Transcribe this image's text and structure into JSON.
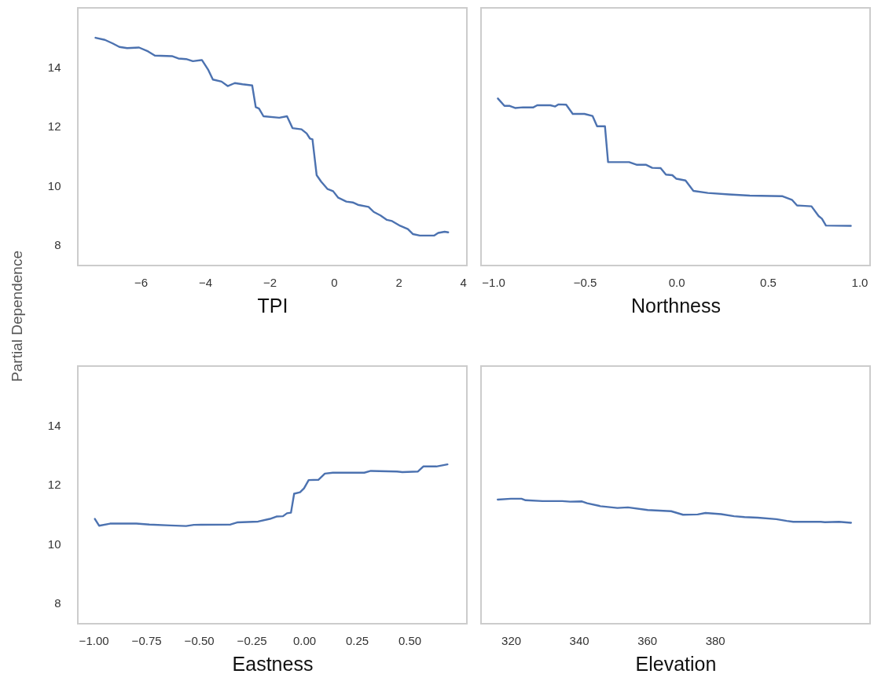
{
  "chart_data": [
    {
      "type": "line",
      "xlabel": "TPI",
      "ylabel": "Partial Dependence",
      "xlim": [
        -7.95,
        4.12
      ],
      "ylim": [
        7.3,
        16
      ],
      "xticks": [
        {
          "value": -6,
          "label": "−6"
        },
        {
          "value": -4,
          "label": "−4"
        },
        {
          "value": -2,
          "label": "−2"
        },
        0,
        2,
        4
      ],
      "yticks": [
        8,
        10,
        12,
        14
      ],
      "grid": false,
      "x": [
        -7.4,
        -7.11,
        -6.87,
        -6.66,
        -6.42,
        -6.05,
        -5.77,
        -5.56,
        -5.03,
        -4.83,
        -4.59,
        -4.38,
        -4.1,
        -3.9,
        -3.76,
        -3.49,
        -3.3,
        -3.08,
        -2.84,
        -2.54,
        -2.43,
        -2.33,
        -2.19,
        -1.7,
        -1.46,
        -1.29,
        -1.01,
        -0.85,
        -0.75,
        -0.67,
        -0.54,
        -0.4,
        -0.2,
        -0.03,
        0.13,
        0.38,
        0.58,
        0.74,
        1.07,
        1.23,
        1.44,
        1.64,
        1.8,
        2.05,
        2.29,
        2.45,
        2.66,
        3.1,
        3.23,
        3.43,
        3.54
      ],
      "series": [
        {
          "color": "#4c72b0",
          "values": [
            14.99,
            14.92,
            14.8,
            14.68,
            14.64,
            14.66,
            14.53,
            14.39,
            14.37,
            14.29,
            14.27,
            14.2,
            14.24,
            13.9,
            13.58,
            13.51,
            13.36,
            13.46,
            13.42,
            13.38,
            12.65,
            12.6,
            12.34,
            12.29,
            12.34,
            11.94,
            11.9,
            11.76,
            11.59,
            11.56,
            10.35,
            10.13,
            9.88,
            9.81,
            9.59,
            9.46,
            9.43,
            9.35,
            9.28,
            9.11,
            8.99,
            8.84,
            8.8,
            8.64,
            8.53,
            8.36,
            8.31,
            8.31,
            8.4,
            8.44,
            8.42
          ]
        }
      ]
    },
    {
      "type": "line",
      "xlabel": "Northness",
      "xlim": [
        -1.067,
        1.058
      ],
      "ylim": [
        7.3,
        16
      ],
      "xticks": [
        {
          "value": -1,
          "label": "−1.0"
        },
        {
          "value": -0.5,
          "label": "−0.5"
        },
        {
          "value": 0,
          "label": "0.0"
        },
        0.5,
        {
          "value": 1,
          "label": "1.0"
        }
      ],
      "yticks": [
        8,
        10,
        12,
        14
      ],
      "grid": false,
      "tick_labels": "x",
      "x": [
        -0.975,
        -0.939,
        -0.91,
        -0.881,
        -0.838,
        -0.781,
        -0.76,
        -0.688,
        -0.662,
        -0.645,
        -0.602,
        -0.566,
        -0.502,
        -0.458,
        -0.433,
        -0.39,
        -0.373,
        -0.258,
        -0.215,
        -0.165,
        -0.132,
        -0.086,
        -0.057,
        -0.022,
        0.0,
        0.05,
        0.093,
        0.172,
        0.287,
        0.401,
        0.58,
        0.631,
        0.659,
        0.738,
        0.777,
        0.795,
        0.817,
        0.953
      ],
      "series": [
        {
          "color": "#4c72b0",
          "values": [
            12.94,
            12.69,
            12.69,
            12.62,
            12.64,
            12.64,
            12.71,
            12.71,
            12.67,
            12.74,
            12.73,
            12.42,
            12.42,
            12.35,
            12.0,
            12.0,
            10.79,
            10.79,
            10.7,
            10.7,
            10.6,
            10.59,
            10.37,
            10.35,
            10.23,
            10.17,
            9.82,
            9.75,
            9.7,
            9.66,
            9.64,
            9.52,
            9.33,
            9.3,
            8.97,
            8.88,
            8.65,
            8.64
          ]
        }
      ]
    },
    {
      "type": "line",
      "xlabel": "Eastness",
      "xlim": [
        -1.075,
        0.772
      ],
      "ylim": [
        7.3,
        16
      ],
      "xticks": [
        {
          "value": -1,
          "label": "−1.00"
        },
        {
          "value": -0.75,
          "label": "−0.75"
        },
        {
          "value": -0.5,
          "label": "−0.50"
        },
        {
          "value": -0.25,
          "label": "−0.25"
        },
        {
          "value": 0,
          "label": "0.00"
        },
        {
          "value": 0.25,
          "label": "0.25"
        },
        {
          "value": 0.5,
          "label": "0.50"
        }
      ],
      "yticks": [
        8,
        10,
        12,
        14
      ],
      "grid": false,
      "x": [
        -0.994,
        -0.974,
        -0.922,
        -0.797,
        -0.735,
        -0.636,
        -0.561,
        -0.524,
        -0.35,
        -0.319,
        -0.219,
        -0.163,
        -0.132,
        -0.101,
        -0.082,
        -0.063,
        -0.048,
        -0.02,
        -0.001,
        0.021,
        0.067,
        0.098,
        0.136,
        0.285,
        0.316,
        0.44,
        0.465,
        0.54,
        0.565,
        0.627,
        0.68
      ],
      "series": [
        {
          "color": "#4c72b0",
          "values": [
            10.84,
            10.61,
            10.68,
            10.68,
            10.65,
            10.62,
            10.6,
            10.64,
            10.65,
            10.72,
            10.75,
            10.84,
            10.92,
            10.93,
            11.03,
            11.05,
            11.69,
            11.74,
            11.87,
            12.15,
            12.16,
            12.37,
            12.4,
            12.4,
            12.46,
            12.44,
            12.42,
            12.44,
            12.61,
            12.61,
            12.68
          ]
        }
      ]
    },
    {
      "type": "line",
      "xlabel": "Elevation",
      "xlim": [
        311.2,
        425.6
      ],
      "ylim": [
        7.3,
        16
      ],
      "xticks": [
        320,
        340,
        360,
        380
      ],
      "yticks": [
        8,
        10,
        12,
        14
      ],
      "grid": false,
      "tick_labels": "x",
      "x": [
        316.1,
        320.0,
        323.1,
        324.3,
        329.3,
        335.1,
        337.4,
        340.9,
        342.4,
        346.3,
        351.3,
        354.4,
        360.2,
        367.1,
        370.6,
        374.9,
        377.2,
        381.8,
        385.6,
        388.7,
        392.6,
        398.0,
        401.1,
        403.0,
        411.1,
        412.3,
        416.5,
        420.0
      ],
      "series": [
        {
          "color": "#4c72b0",
          "values": [
            11.49,
            11.52,
            11.52,
            11.47,
            11.44,
            11.44,
            11.42,
            11.43,
            11.37,
            11.27,
            11.21,
            11.23,
            11.14,
            11.1,
            10.98,
            10.99,
            11.04,
            11.0,
            10.93,
            10.9,
            10.88,
            10.83,
            10.77,
            10.74,
            10.74,
            10.73,
            10.74,
            10.71
          ]
        }
      ]
    }
  ]
}
